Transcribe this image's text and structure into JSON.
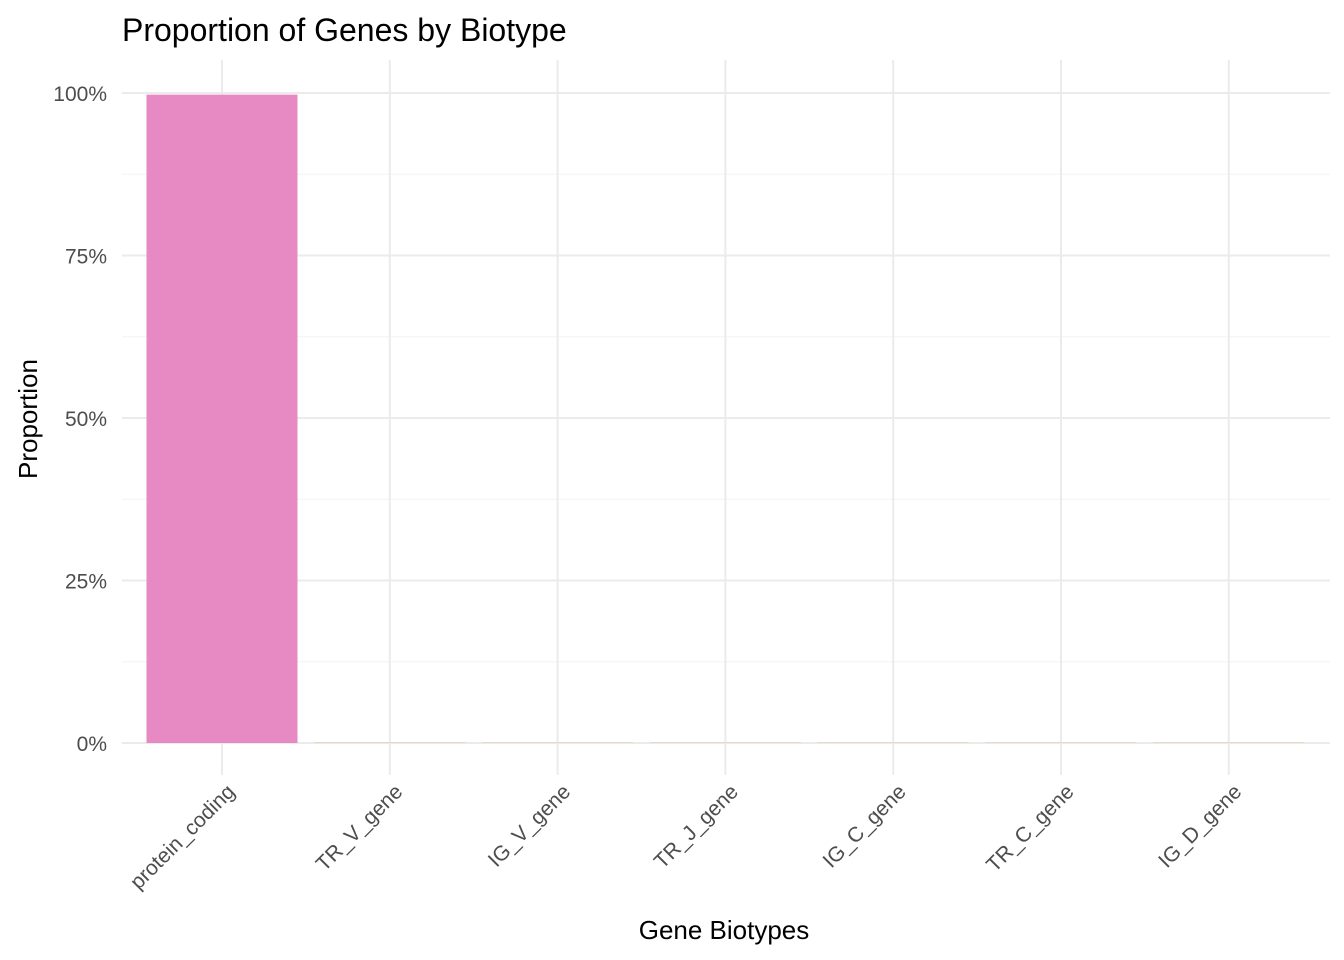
{
  "chart_data": {
    "type": "bar",
    "title": "Proportion of Genes by Biotype",
    "xlabel": "Gene Biotypes",
    "ylabel": "Proportion",
    "categories": [
      "protein_coding",
      "TR_V_gene",
      "IG_V_gene",
      "TR_J_gene",
      "IG_C_gene",
      "TR_C_gene",
      "IG_D_gene"
    ],
    "values": [
      0.9975,
      0.0015,
      0.0003,
      0.0002,
      0.0002,
      0.0001,
      0.0001
    ],
    "colors": [
      "#e78ac3",
      "#e5d8bd",
      "#e5d8bd",
      "#e5d8bd",
      "#e5d8bd",
      "#e5d8bd",
      "#e5d8bd"
    ],
    "ylim": [
      0,
      1
    ],
    "y_ticks": [
      0,
      0.25,
      0.5,
      0.75,
      1.0
    ],
    "y_tick_labels": [
      "0%",
      "25%",
      "50%",
      "75%",
      "100%"
    ],
    "grid": true,
    "legend": "none"
  }
}
